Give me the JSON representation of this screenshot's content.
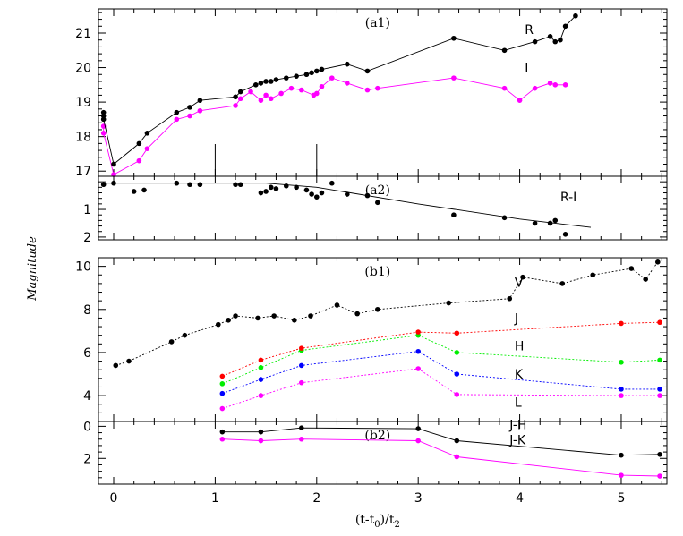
{
  "chart_data": {
    "type": "scatter",
    "ylabel": "Magnitude",
    "xlabel": "(t-t",
    "xlabel_sub0": "0",
    "xlabel_mid": ")/t",
    "xlabel_sub2": "2",
    "xlim": [
      -0.15,
      5.45
    ],
    "x_ticks": [
      0,
      1,
      2,
      3,
      4,
      5
    ],
    "x_tick_labels": [
      "0",
      "1",
      "2",
      "3",
      "4",
      "5"
    ],
    "colors": {
      "I": "#ff00ff",
      "R": "#000000",
      "V": "#000000",
      "J": "#ff0000",
      "H": "#00ee00",
      "K": "#0000ff",
      "L": "#ff00ff",
      "JK": "#ff00ff",
      "JH": "#000000"
    },
    "panels": [
      {
        "id": "a1",
        "title": "(a1)",
        "ylim": [
          21.7,
          16.85
        ],
        "y_ticks": [
          17,
          18,
          19,
          20,
          21
        ],
        "y_tick_labels": [
          "17",
          "18",
          "19",
          "20",
          "21"
        ],
        "markers_x": [
          1,
          2
        ],
        "series": [
          {
            "key": "I",
            "name": "I",
            "style": "solid",
            "label_at": [
              4.05,
              20.0
            ],
            "x": [
              -0.1,
              -0.1,
              0.0,
              0.25,
              0.33,
              0.62,
              0.75,
              0.85,
              1.2,
              1.25,
              1.35,
              1.45,
              1.5,
              1.55,
              1.65,
              1.75,
              1.85,
              1.97,
              2.0,
              2.05,
              2.15,
              2.3,
              2.5,
              2.6,
              3.35,
              3.85,
              4.0,
              4.15,
              4.3,
              4.35,
              4.45
            ],
            "y": [
              18.3,
              18.1,
              16.9,
              17.3,
              17.65,
              18.5,
              18.6,
              18.75,
              18.9,
              19.1,
              19.3,
              19.05,
              19.2,
              19.1,
              19.25,
              19.4,
              19.35,
              19.2,
              19.25,
              19.45,
              19.7,
              19.55,
              19.35,
              19.4,
              19.7,
              19.4,
              19.05,
              19.4,
              19.55,
              19.5,
              19.5
            ]
          },
          {
            "key": "R",
            "name": "R",
            "style": "solid",
            "label_at": [
              4.05,
              21.1
            ],
            "x": [
              -0.1,
              -0.1,
              -0.1,
              0.0,
              0.25,
              0.33,
              0.62,
              0.75,
              0.85,
              1.2,
              1.25,
              1.4,
              1.45,
              1.5,
              1.55,
              1.6,
              1.7,
              1.8,
              1.9,
              1.95,
              2.0,
              2.05,
              2.3,
              2.5,
              3.35,
              3.85,
              4.15,
              4.3,
              4.35,
              4.4,
              4.45,
              4.55
            ],
            "y": [
              18.6,
              18.7,
              18.5,
              17.2,
              17.8,
              18.1,
              18.7,
              18.85,
              19.05,
              19.15,
              19.3,
              19.5,
              19.55,
              19.6,
              19.6,
              19.65,
              19.7,
              19.75,
              19.8,
              19.85,
              19.9,
              19.95,
              20.1,
              19.9,
              20.85,
              20.5,
              20.75,
              20.9,
              20.75,
              20.8,
              21.2,
              21.5
            ]
          }
        ]
      },
      {
        "id": "a2",
        "title": "(a2)",
        "ylim": [
          -0.2,
          2.1
        ],
        "y_ticks": [
          1,
          2
        ],
        "y_tick_labels": [
          "1",
          "2"
        ],
        "series": [
          {
            "key": "R",
            "name": "R-I",
            "style": "points",
            "label_at": [
              4.4,
              0.55
            ],
            "x": [
              -0.1,
              0.0,
              0.2,
              0.3,
              0.62,
              0.75,
              0.85,
              1.2,
              1.25,
              1.45,
              1.5,
              1.55,
              1.6,
              1.7,
              1.8,
              1.9,
              1.95,
              2.0,
              2.05,
              2.15,
              2.3,
              2.5,
              2.6,
              3.35,
              3.85,
              4.15,
              4.3,
              4.35,
              4.45
            ],
            "y": [
              0.1,
              0.05,
              0.35,
              0.3,
              0.05,
              0.1,
              0.1,
              0.1,
              0.1,
              0.4,
              0.35,
              0.2,
              0.25,
              0.15,
              0.2,
              0.3,
              0.45,
              0.55,
              0.4,
              0.05,
              0.45,
              0.5,
              0.75,
              1.2,
              1.3,
              1.5,
              1.5,
              1.4,
              1.9
            ]
          },
          {
            "key": "R",
            "name": "",
            "style": "solid-fit",
            "x": [
              -0.1,
              1.5,
              2.0,
              3.0,
              4.0,
              4.7
            ],
            "y": [
              0.05,
              0.05,
              0.2,
              0.8,
              1.35,
              1.65
            ]
          }
        ]
      },
      {
        "id": "b1",
        "title": "(b1)",
        "ylim": [
          10.4,
          2.8
        ],
        "y_ticks": [
          4,
          6,
          8,
          10
        ],
        "y_tick_labels": [
          "4",
          "6",
          "8",
          "10"
        ],
        "series": [
          {
            "key": "L",
            "name": "L",
            "style": "dotted",
            "label_at": [
              3.95,
              3.7
            ],
            "x": [
              1.07,
              1.45,
              1.85,
              3.0,
              3.38,
              5.0,
              5.38
            ],
            "y": [
              3.4,
              4.0,
              4.6,
              5.25,
              4.05,
              4.0,
              4.0
            ]
          },
          {
            "key": "K",
            "name": "K",
            "style": "dotted",
            "label_at": [
              3.95,
              5.0
            ],
            "x": [
              1.07,
              1.45,
              1.85,
              3.0,
              3.38,
              5.0,
              5.38
            ],
            "y": [
              4.1,
              4.75,
              5.4,
              6.05,
              5.0,
              4.3,
              4.3
            ]
          },
          {
            "key": "H",
            "name": "H",
            "style": "dotted",
            "label_at": [
              3.95,
              6.3
            ],
            "x": [
              1.07,
              1.45,
              1.85,
              3.0,
              3.38,
              5.0,
              5.38
            ],
            "y": [
              4.55,
              5.3,
              6.1,
              6.8,
              6.0,
              5.55,
              5.65
            ]
          },
          {
            "key": "J",
            "name": "J",
            "style": "dotted",
            "label_at": [
              3.95,
              7.6
            ],
            "x": [
              1.07,
              1.45,
              1.85,
              3.0,
              3.38,
              5.0,
              5.38
            ],
            "y": [
              4.9,
              5.65,
              6.2,
              6.95,
              6.9,
              7.35,
              7.4
            ]
          },
          {
            "key": "V",
            "name": "V",
            "style": "dotted",
            "label_at": [
              3.95,
              9.25
            ],
            "x": [
              0.02,
              0.15,
              0.57,
              0.7,
              1.03,
              1.13,
              1.2,
              1.42,
              1.58,
              1.78,
              1.94,
              2.2,
              2.4,
              2.6,
              3.3,
              3.9,
              4.03,
              4.42,
              4.72,
              5.1,
              5.24,
              5.36
            ],
            "y": [
              5.4,
              5.6,
              6.5,
              6.8,
              7.3,
              7.5,
              7.7,
              7.6,
              7.7,
              7.5,
              7.7,
              8.2,
              7.8,
              8.0,
              8.3,
              8.5,
              9.5,
              9.2,
              9.6,
              9.9,
              9.4,
              10.2
            ]
          }
        ]
      },
      {
        "id": "b2",
        "title": "(b2)",
        "ylim": [
          -0.3,
          3.6
        ],
        "y_ticks": [
          0,
          2
        ],
        "y_tick_labels": [
          "0",
          "2"
        ],
        "series": [
          {
            "key": "JK",
            "name": "J-K",
            "style": "solid",
            "label_at": [
              3.9,
              0.85
            ],
            "x": [
              1.07,
              1.45,
              1.85,
              3.0,
              3.38,
              5.0,
              5.38
            ],
            "y": [
              0.8,
              0.9,
              0.8,
              0.9,
              1.9,
              3.05,
              3.1
            ]
          },
          {
            "key": "JH",
            "name": "J-H",
            "style": "solid",
            "label_at": [
              3.9,
              -0.1
            ],
            "x": [
              1.07,
              1.45,
              1.85,
              3.0,
              3.38,
              5.0,
              5.38
            ],
            "y": [
              0.35,
              0.35,
              0.1,
              0.15,
              0.9,
              1.8,
              1.75
            ]
          }
        ]
      }
    ]
  }
}
